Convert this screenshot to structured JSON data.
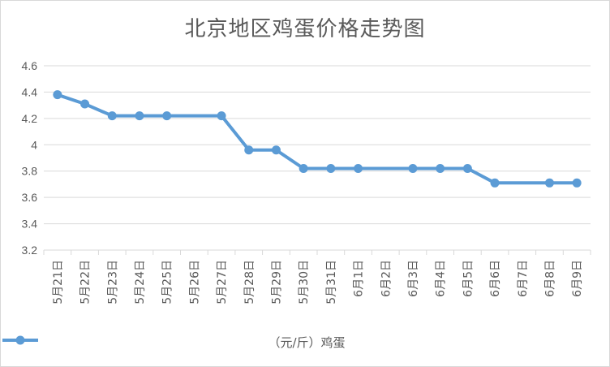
{
  "chart_data": {
    "type": "line",
    "title": "北京地区鸡蛋价格走势图",
    "categories": [
      "5月21日",
      "5月22日",
      "5月23日",
      "5月24日",
      "5月25日",
      "5月26日",
      "5月27日",
      "5月28日",
      "5月29日",
      "5月30日",
      "5月31日",
      "6月1日",
      "6月2日",
      "6月3日",
      "6月4日",
      "6月5日",
      "6月6日",
      "6月7日",
      "6月8日",
      "6月9日"
    ],
    "series": [
      {
        "name": "（元/斤）鸡蛋",
        "color": "#5b9bd5",
        "values": [
          4.38,
          4.31,
          4.22,
          4.22,
          4.22,
          null,
          4.22,
          3.96,
          3.96,
          3.82,
          3.82,
          3.82,
          null,
          3.82,
          3.82,
          3.82,
          3.71,
          null,
          3.71,
          3.71
        ]
      }
    ],
    "yticks": [
      "3.2",
      "3.4",
      "3.6",
      "3.8",
      "4",
      "4.2",
      "4.4",
      "4.6"
    ],
    "ylim": [
      3.2,
      4.6
    ],
    "grid": true,
    "legend_position": "bottom",
    "gap_handling": "connect"
  }
}
